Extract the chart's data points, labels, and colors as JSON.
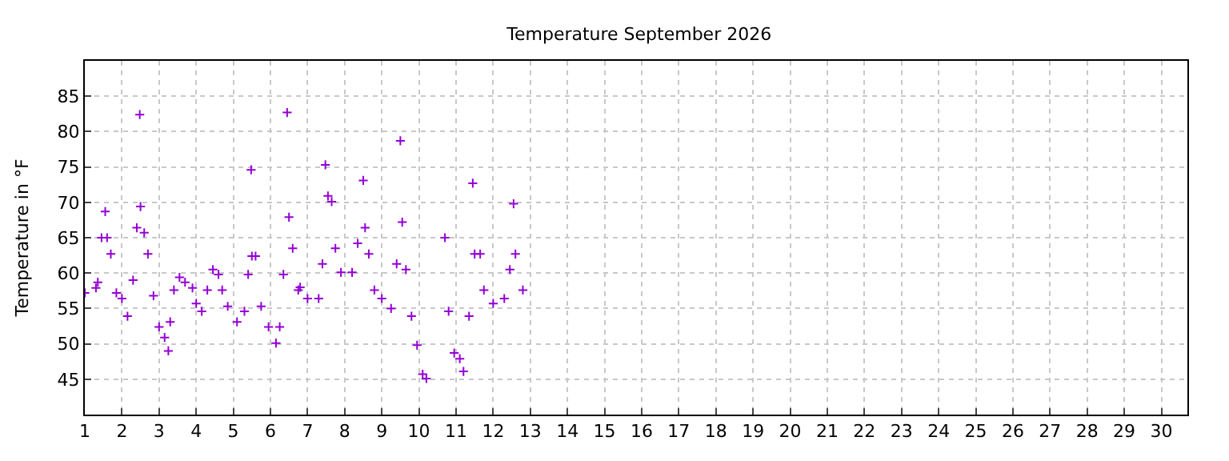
{
  "chart_data": {
    "type": "scatter",
    "title": "Temperature September 2026",
    "ylabel": "Temperature in °F",
    "x": [
      1.0,
      1.3,
      1.35,
      1.45,
      1.55,
      1.6,
      1.7,
      1.85,
      2.0,
      2.15,
      2.3,
      2.4,
      2.48,
      2.5,
      2.6,
      2.7,
      2.85,
      3.0,
      3.15,
      3.25,
      3.3,
      3.4,
      3.55,
      3.7,
      3.9,
      4.0,
      4.15,
      4.3,
      4.45,
      4.6,
      4.7,
      4.85,
      5.1,
      5.3,
      5.4,
      5.48,
      5.5,
      5.6,
      5.75,
      5.95,
      6.15,
      6.25,
      6.35,
      6.45,
      6.5,
      6.6,
      6.75,
      6.8,
      7.0,
      7.3,
      7.4,
      7.48,
      7.55,
      7.65,
      7.75,
      7.9,
      8.2,
      8.35,
      8.5,
      8.55,
      8.65,
      8.8,
      9.0,
      9.25,
      9.4,
      9.5,
      9.55,
      9.65,
      9.8,
      9.95,
      10.1,
      10.2,
      10.7,
      10.8,
      10.95,
      11.1,
      11.2,
      11.35,
      11.45,
      11.5,
      11.65,
      11.75,
      12.0,
      12.3,
      12.45,
      12.55,
      12.6,
      12.8
    ],
    "values": [
      57.2,
      57.9,
      58.7,
      65,
      68.7,
      65,
      62.7,
      57.2,
      56.4,
      53.9,
      59,
      66.4,
      82.4,
      69.4,
      65.7,
      62.7,
      56.8,
      52.4,
      50.9,
      49,
      53.1,
      57.6,
      59.4,
      58.7,
      57.9,
      55.7,
      54.6,
      57.6,
      60.5,
      59.8,
      57.6,
      55.3,
      53.1,
      54.6,
      59.8,
      74.6,
      62.4,
      62.4,
      55.3,
      52.4,
      50.1,
      52.4,
      59.8,
      82.7,
      67.9,
      63.5,
      57.6,
      58,
      56.4,
      56.4,
      61.3,
      75.3,
      70.9,
      70.1,
      63.5,
      60.1,
      60.1,
      64.2,
      73.1,
      66.4,
      62.7,
      57.6,
      56.4,
      55,
      61.3,
      78.7,
      67.2,
      60.5,
      53.9,
      49.8,
      45.7,
      45.1,
      65,
      54.6,
      48.7,
      47.9,
      46.1,
      53.9,
      72.7,
      62.7,
      62.7,
      57.6,
      55.7,
      56.4,
      60.5,
      69.8,
      62.7,
      57.6
    ],
    "color": "#9400d3",
    "marker": "cross",
    "grid": true,
    "legend": false,
    "xlim": [
      1,
      30.7
    ],
    "xticks": [
      1,
      2,
      3,
      4,
      5,
      6,
      7,
      8,
      9,
      10,
      11,
      12,
      13,
      14,
      15,
      16,
      17,
      18,
      19,
      20,
      21,
      22,
      23,
      24,
      25,
      26,
      27,
      28,
      29,
      30
    ],
    "ylim": [
      40,
      90
    ],
    "yticks": [
      45,
      50,
      55,
      60,
      65,
      70,
      75,
      80,
      85
    ]
  }
}
